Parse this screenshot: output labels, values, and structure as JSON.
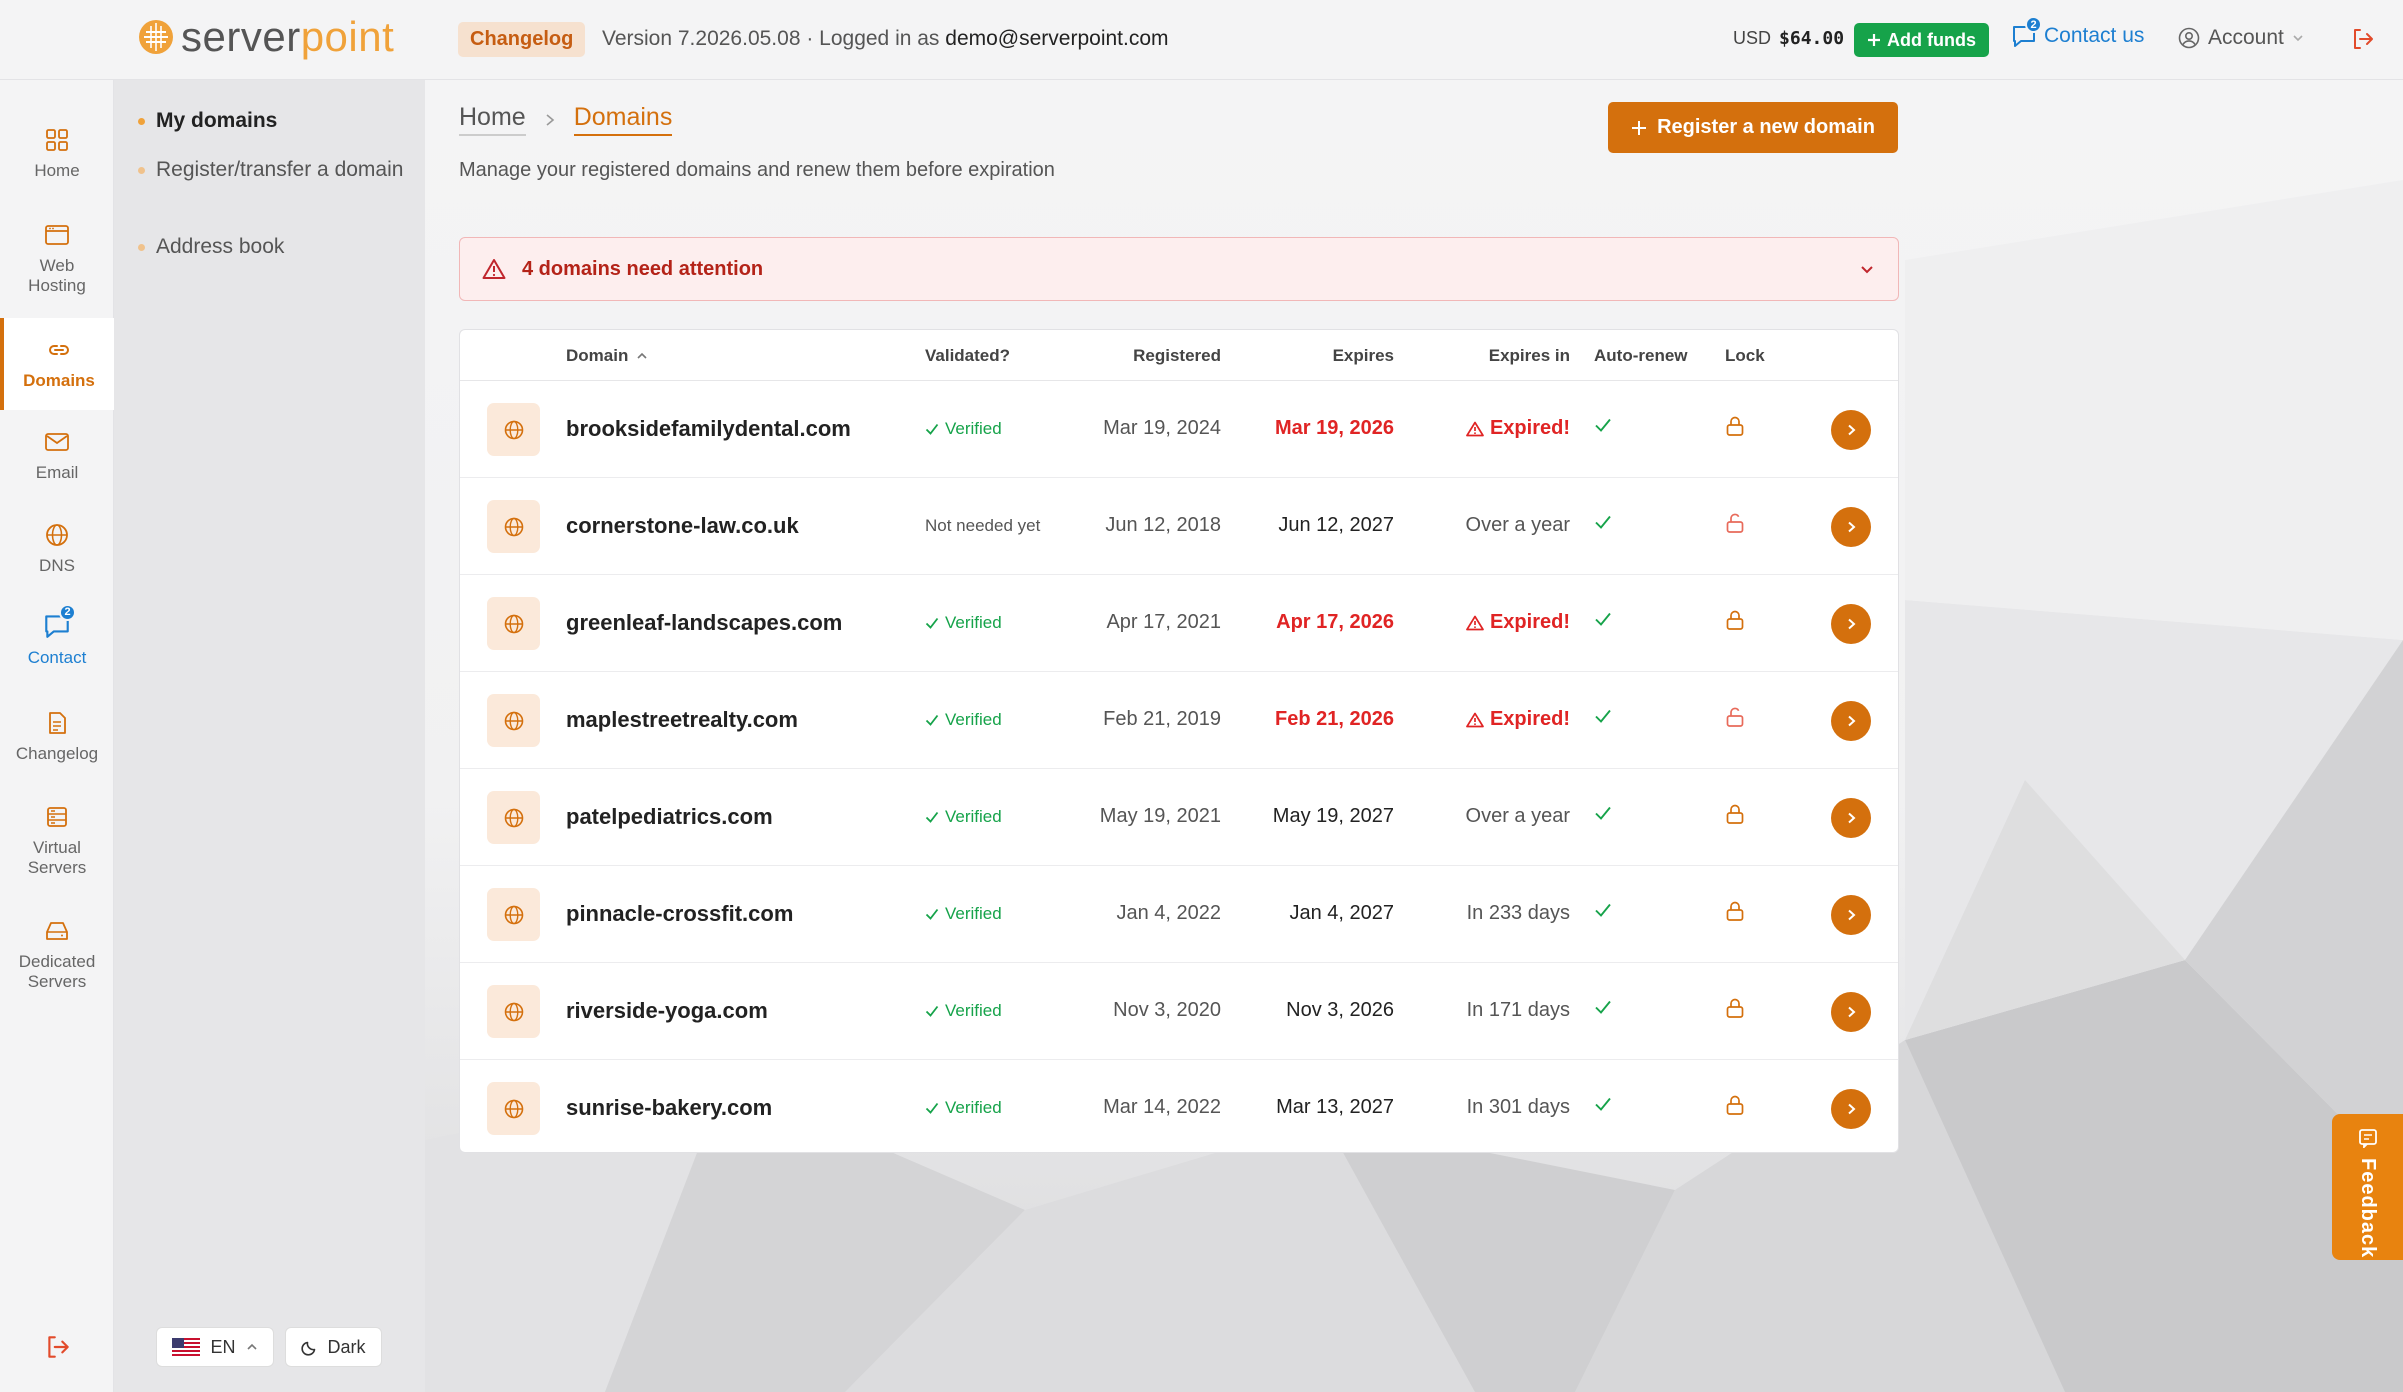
{
  "brand": {
    "name_part1": "server",
    "name_part2": "point"
  },
  "topbar": {
    "changelog_label": "Changelog",
    "version_text": "Version 7.2026.05.08 · Logged in as",
    "user_email": "demo@serverpoint.com",
    "currency": "USD",
    "balance": "$64.00",
    "add_funds_label": "Add funds",
    "contact_label": "Contact us",
    "contact_badge": "2",
    "account_label": "Account"
  },
  "rail": {
    "items": [
      {
        "label": "Home"
      },
      {
        "label": "Web Hosting"
      },
      {
        "label": "Domains"
      },
      {
        "label": "Email"
      },
      {
        "label": "DNS"
      },
      {
        "label": "Contact",
        "badge": "2"
      },
      {
        "label": "Changelog"
      },
      {
        "label": "Virtual Servers"
      },
      {
        "label": "Dedicated Servers"
      }
    ]
  },
  "subnav": {
    "items": [
      {
        "label": "My domains"
      },
      {
        "label": "Register/transfer a domain"
      },
      {
        "label": "Address book"
      }
    ],
    "language": "EN",
    "theme_label": "Dark"
  },
  "page": {
    "breadcrumb_home": "Home",
    "breadcrumb_current": "Domains",
    "subtitle": "Manage your registered domains and renew them before expiration",
    "register_label": "Register a new domain",
    "alert_text": "4 domains need attention"
  },
  "table": {
    "headers": {
      "domain": "Domain",
      "validated": "Validated?",
      "registered": "Registered",
      "expires": "Expires",
      "expires_in": "Expires in",
      "auto_renew": "Auto-renew",
      "lock": "Lock"
    },
    "rows": [
      {
        "domain": "brooksidefamilydental.com",
        "validated": "Verified",
        "registered": "Mar 19, 2024",
        "expires": "Mar 19, 2026",
        "expires_in": "Expired!"
      },
      {
        "domain": "cornerstone-law.co.uk",
        "validated": "Not needed yet",
        "registered": "Jun 12, 2018",
        "expires": "Jun 12, 2027",
        "expires_in": "Over a year"
      },
      {
        "domain": "greenleaf-landscapes.com",
        "validated": "Verified",
        "registered": "Apr 17, 2021",
        "expires": "Apr 17, 2026",
        "expires_in": "Expired!"
      },
      {
        "domain": "maplestreetrealty.com",
        "validated": "Verified",
        "registered": "Feb 21, 2019",
        "expires": "Feb 21, 2026",
        "expires_in": "Expired!"
      },
      {
        "domain": "patelpediatrics.com",
        "validated": "Verified",
        "registered": "May 19, 2021",
        "expires": "May 19, 2027",
        "expires_in": "Over a year"
      },
      {
        "domain": "pinnacle-crossfit.com",
        "validated": "Verified",
        "registered": "Jan 4, 2022",
        "expires": "Jan 4, 2027",
        "expires_in": "In 233 days"
      },
      {
        "domain": "riverside-yoga.com",
        "validated": "Verified",
        "registered": "Nov 3, 2020",
        "expires": "Nov 3, 2026",
        "expires_in": "In 171 days"
      },
      {
        "domain": "sunrise-bakery.com",
        "validated": "Verified",
        "registered": "Mar 14, 2022",
        "expires": "Mar 13, 2027",
        "expires_in": "In 301 days"
      }
    ]
  },
  "feedback_label": "Feedback",
  "colors": {
    "accent": "#d4700d",
    "expired": "#e02424",
    "verified": "#16a34a",
    "link": "#1d7fd1"
  }
}
